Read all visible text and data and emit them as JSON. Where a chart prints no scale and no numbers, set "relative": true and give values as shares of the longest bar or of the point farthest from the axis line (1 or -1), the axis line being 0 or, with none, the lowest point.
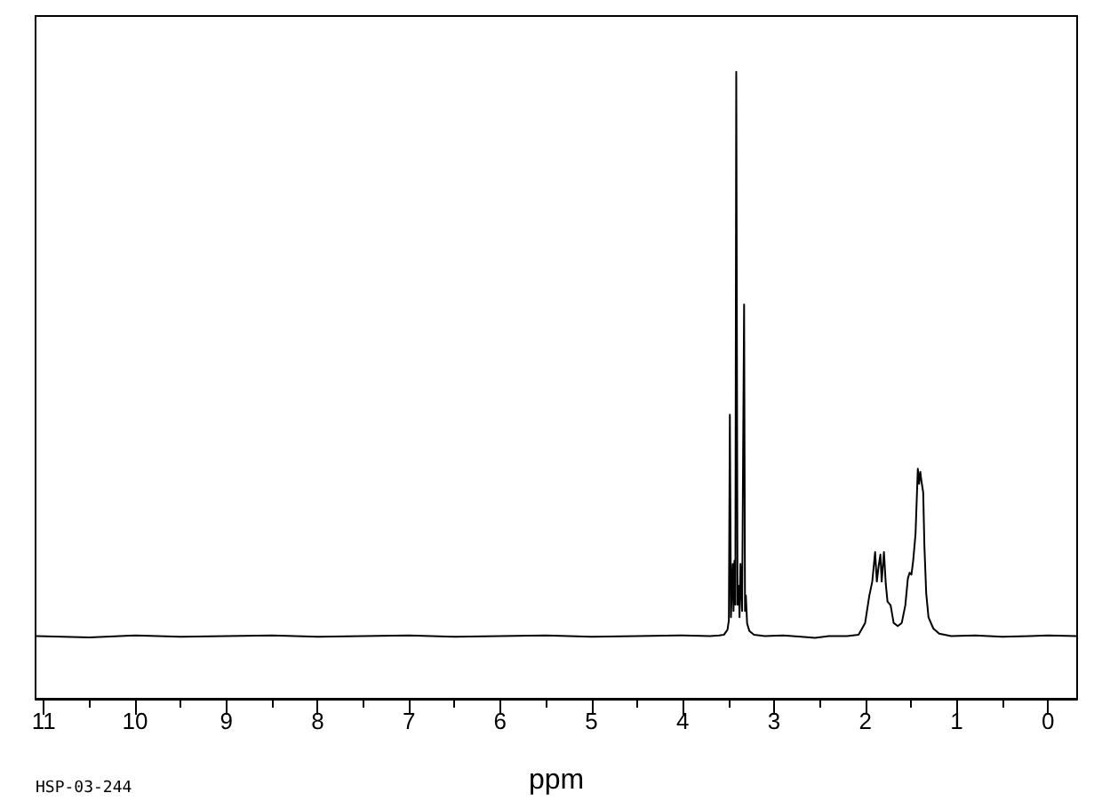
{
  "chart_data": {
    "type": "line",
    "xlabel": "ppm",
    "annotations": [
      "HSP-03-244"
    ],
    "relative": true,
    "color": "#000000",
    "xlim": [
      11.09,
      -0.32
    ],
    "xticks": [
      11,
      {
        "value": 10.5,
        "label": null
      },
      10,
      {
        "value": 9.5,
        "label": null
      },
      9,
      {
        "value": 8.5,
        "label": null
      },
      8,
      {
        "value": 7.5,
        "label": null
      },
      7,
      {
        "value": 6.5,
        "label": null
      },
      6,
      {
        "value": 5.5,
        "label": null
      },
      5,
      {
        "value": 4.5,
        "label": null
      },
      4,
      {
        "value": 3.5,
        "label": null
      },
      3,
      {
        "value": 2.5,
        "label": null
      },
      2,
      {
        "value": 1.5,
        "label": null
      },
      1,
      {
        "value": 0.5,
        "label": null
      },
      0
    ],
    "x": [
      11.08,
      10.5,
      10.0,
      9.5,
      9.0,
      8.5,
      8.0,
      7.5,
      7.0,
      6.5,
      6.0,
      5.5,
      5.0,
      4.5,
      4.0,
      3.7,
      3.6,
      3.55,
      3.51,
      3.495,
      3.484,
      3.472,
      3.453,
      3.444,
      3.434,
      3.424,
      3.414,
      3.4,
      3.387,
      3.378,
      3.368,
      3.35,
      3.328,
      3.318,
      3.309,
      3.295,
      3.27,
      3.22,
      3.1,
      2.9,
      2.7,
      2.55,
      2.4,
      2.2,
      2.074,
      2.002,
      1.957,
      1.924,
      1.893,
      1.874,
      1.854,
      1.835,
      1.821,
      1.796,
      1.776,
      1.757,
      1.723,
      1.69,
      1.645,
      1.601,
      1.562,
      1.534,
      1.515,
      1.495,
      1.476,
      1.45,
      1.425,
      1.411,
      1.398,
      1.386,
      1.366,
      1.353,
      1.333,
      1.308,
      1.255,
      1.191,
      1.06,
      0.8,
      0.5,
      0.2,
      0.0,
      -0.31
    ],
    "values": [
      0.1,
      0.098,
      0.101,
      0.099,
      0.1,
      0.101,
      0.099,
      0.1,
      0.101,
      0.099,
      0.1,
      0.101,
      0.099,
      0.1,
      0.101,
      0.1,
      0.101,
      0.102,
      0.11,
      0.125,
      0.453,
      0.13,
      0.215,
      0.14,
      0.22,
      0.15,
      1.0,
      0.15,
      0.18,
      0.13,
      0.215,
      0.14,
      0.629,
      0.14,
      0.165,
      0.12,
      0.108,
      0.102,
      0.1,
      0.101,
      0.099,
      0.097,
      0.1,
      0.1,
      0.102,
      0.121,
      0.164,
      0.187,
      0.234,
      0.187,
      0.212,
      0.23,
      0.187,
      0.234,
      0.183,
      0.155,
      0.149,
      0.121,
      0.116,
      0.121,
      0.149,
      0.192,
      0.201,
      0.198,
      0.22,
      0.263,
      0.367,
      0.343,
      0.362,
      0.348,
      0.329,
      0.244,
      0.168,
      0.13,
      0.112,
      0.104,
      0.1,
      0.101,
      0.099,
      0.1,
      0.101,
      0.1
    ]
  }
}
